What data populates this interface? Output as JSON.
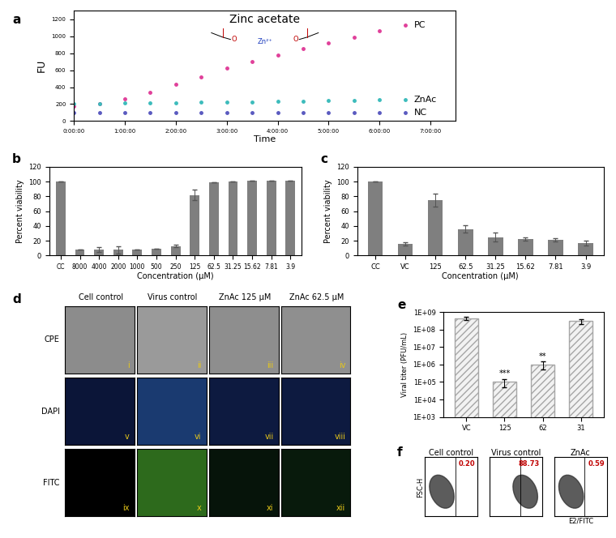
{
  "chart_data": [
    {
      "panel": "a",
      "type": "scatter",
      "title": "Zinc acetate",
      "molecule": [
        "O",
        "Zn²⁺",
        "O"
      ],
      "x_label": "Time",
      "y_label": "FU",
      "x": [
        0,
        0.5,
        1,
        1.5,
        2,
        2.5,
        3,
        3.5,
        4,
        4.5,
        5,
        5.5,
        6,
        6.5
      ],
      "series": [
        {
          "name": "PC",
          "color": "#e0409a",
          "marker": "o",
          "line_style": "none",
          "values": [
            180,
            200,
            260,
            340,
            430,
            520,
            620,
            700,
            780,
            850,
            920,
            990,
            1060,
            1130
          ]
        },
        {
          "name": "ZnAc",
          "color": "#3cbcbc",
          "marker": "o",
          "line_style": "none",
          "values": [
            200,
            205,
            210,
            215,
            215,
            220,
            225,
            225,
            230,
            235,
            240,
            245,
            250,
            255
          ]
        },
        {
          "name": "NC",
          "color": "#5a5ac0",
          "marker": "o",
          "line_style": "none",
          "values": [
            100,
            100,
            95,
            100,
            100,
            95,
            100,
            100,
            95,
            100,
            100,
            95,
            100,
            100
          ]
        }
      ],
      "xlim": [
        0,
        7.5
      ],
      "xticks": [
        {
          "value": 0,
          "label": "0:00:00"
        },
        {
          "value": 1,
          "label": "1:00:00"
        },
        {
          "value": 2,
          "label": "2:00:00"
        },
        {
          "value": 3,
          "label": "3:00:00"
        },
        {
          "value": 4,
          "label": "4:00:00"
        },
        {
          "value": 5,
          "label": "5:00:00"
        },
        {
          "value": 6,
          "label": "6:00:00"
        },
        {
          "value": 7,
          "label": "7:00:00"
        }
      ],
      "ylim": [
        0,
        1300
      ],
      "yticks": [
        0,
        200,
        400,
        600,
        800,
        1000,
        1200
      ]
    },
    {
      "panel": "b",
      "type": "bar",
      "x_label": "Concentration (µM)",
      "y_label": "Percent viability",
      "categories": [
        "CC",
        "8000",
        "4000",
        "2000",
        "1000",
        "500",
        "250",
        "125",
        "62.5",
        "31.25",
        "15.62",
        "7.81",
        "3.9"
      ],
      "values": [
        100,
        8,
        8,
        8,
        8.5,
        9.5,
        13,
        82,
        99,
        100,
        101,
        101,
        101
      ],
      "errors": [
        0,
        0,
        3,
        5,
        0,
        0,
        2,
        7,
        0,
        0,
        0,
        0,
        0
      ],
      "color": "#7f7f7f",
      "ylim": [
        0,
        120
      ],
      "yticks": [
        0,
        20,
        40,
        60,
        80,
        100,
        120
      ]
    },
    {
      "panel": "c",
      "type": "bar",
      "x_label": "Concentration (µM)",
      "y_label": "Percent viability",
      "categories": [
        "CC",
        "VC",
        "125",
        "62.5",
        "31.25",
        "15.62",
        "7.81",
        "3.9"
      ],
      "values": [
        100,
        16,
        75,
        36,
        25,
        22,
        21,
        17
      ],
      "errors": [
        0,
        2,
        9,
        5,
        6,
        2,
        2,
        3
      ],
      "color": "#7f7f7f",
      "ylim": [
        0,
        120
      ],
      "yticks": [
        0,
        20,
        40,
        60,
        80,
        100,
        120
      ]
    },
    {
      "panel": "e",
      "type": "bar",
      "log": "y",
      "y_label": "Viral titer (PFU/mL)",
      "categories": [
        "VC",
        "125",
        "62",
        "31"
      ],
      "values": [
        450000000,
        100000,
        1000000,
        300000000
      ],
      "errors": [
        100000000,
        50000,
        500000,
        100000000
      ],
      "significance": [
        null,
        "***",
        "**",
        null
      ],
      "color": "#a6a6a6",
      "ylim": [
        1000,
        1000000000
      ],
      "yticks": [
        {
          "value": 1000,
          "label": "1E+03"
        },
        {
          "value": 10000,
          "label": "1E+04"
        },
        {
          "value": 100000,
          "label": "1E+05"
        },
        {
          "value": 1000000,
          "label": "1E+06"
        },
        {
          "value": 10000000,
          "label": "1E+07"
        },
        {
          "value": 100000000,
          "label": "1E+08"
        },
        {
          "value": 1000000000,
          "label": "1E+09"
        }
      ]
    }
  ],
  "image_panel": {
    "panel": "d",
    "rows": [
      "CPE",
      "DAPI",
      "FITC"
    ],
    "columns": [
      "Cell control",
      "Virus control",
      "ZnAc 125 µM",
      "ZnAc 62.5 µM"
    ],
    "numerals": [
      "i",
      "ii",
      "iii",
      "iv",
      "v",
      "vi",
      "vii",
      "viii",
      "ix",
      "x",
      "xi",
      "xii"
    ]
  },
  "flow_panel": {
    "panel": "f",
    "titles": [
      "Cell control",
      "Virus control",
      "ZnAc"
    ],
    "gate_percent": [
      "0.20",
      "88.73",
      "0.59"
    ],
    "y_label": "FSC-H",
    "x_label": "E2/FITC",
    "tick_labels": false
  }
}
